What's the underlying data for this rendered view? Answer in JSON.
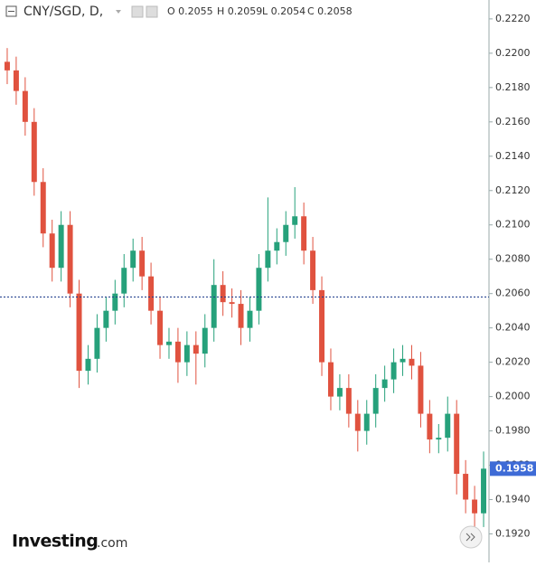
{
  "header": {
    "symbol": "CNY/SGD, D,",
    "open": "O 0.2055",
    "high": "H 0.2059",
    "low": "L 0.2054",
    "close": "C 0.2058"
  },
  "logo": {
    "name": "Investing",
    "suffix": ".com"
  },
  "chart_data": {
    "type": "candlestick",
    "open": [
      0.2195,
      0.219,
      0.2178,
      0.216,
      0.2125,
      0.2095,
      0.2075,
      0.21,
      0.206,
      0.2015,
      0.2022,
      0.204,
      0.205,
      0.206,
      0.2075,
      0.2085,
      0.207,
      0.205,
      0.203,
      0.2032,
      0.202,
      0.203,
      0.2025,
      0.204,
      0.2065,
      0.2055,
      0.2054,
      0.204,
      0.205,
      0.2075,
      0.2085,
      0.209,
      0.21,
      0.2105,
      0.2085,
      0.2062,
      0.202,
      0.2,
      0.2005,
      0.199,
      0.198,
      0.199,
      0.2005,
      0.201,
      0.202,
      0.2022,
      0.2018,
      0.199,
      0.1975,
      0.1976,
      0.199,
      0.1955,
      0.194,
      0.1932
    ],
    "high": [
      0.2203,
      0.2198,
      0.2186,
      0.2168,
      0.2133,
      0.2103,
      0.2108,
      0.2108,
      0.2068,
      0.203,
      0.2048,
      0.2058,
      0.2068,
      0.2083,
      0.2092,
      0.2093,
      0.2078,
      0.2058,
      0.204,
      0.204,
      0.2038,
      0.2038,
      0.2048,
      0.208,
      0.2073,
      0.2063,
      0.2062,
      0.2058,
      0.2083,
      0.2116,
      0.2098,
      0.2108,
      0.2122,
      0.2113,
      0.2093,
      0.207,
      0.2028,
      0.2013,
      0.2013,
      0.1998,
      0.1998,
      0.2013,
      0.2018,
      0.2028,
      0.203,
      0.203,
      0.2026,
      0.1998,
      0.1984,
      0.2,
      0.1998,
      0.1963,
      0.1948,
      0.1968
    ],
    "low": [
      0.2182,
      0.217,
      0.2152,
      0.2117,
      0.2087,
      0.2067,
      0.2067,
      0.2052,
      0.2005,
      0.2007,
      0.2014,
      0.2032,
      0.2042,
      0.2052,
      0.2067,
      0.2062,
      0.2042,
      0.2022,
      0.2022,
      0.2008,
      0.2012,
      0.2007,
      0.2017,
      0.2032,
      0.2047,
      0.2046,
      0.203,
      0.2032,
      0.2042,
      0.2067,
      0.2077,
      0.2082,
      0.2092,
      0.2077,
      0.2054,
      0.2012,
      0.1992,
      0.1992,
      0.1982,
      0.1968,
      0.1972,
      0.1982,
      0.1997,
      0.2002,
      0.2012,
      0.201,
      0.1982,
      0.1967,
      0.1967,
      0.1968,
      0.1943,
      0.1932,
      0.1922,
      0.1924
    ],
    "close": [
      0.219,
      0.2178,
      0.216,
      0.2125,
      0.2095,
      0.2075,
      0.21,
      0.206,
      0.2015,
      0.2022,
      0.204,
      0.205,
      0.206,
      0.2075,
      0.2085,
      0.207,
      0.205,
      0.203,
      0.2032,
      0.202,
      0.203,
      0.2025,
      0.204,
      0.2065,
      0.2055,
      0.2054,
      0.204,
      0.205,
      0.2075,
      0.2085,
      0.209,
      0.21,
      0.2105,
      0.2085,
      0.2062,
      0.202,
      0.2,
      0.2005,
      0.199,
      0.198,
      0.199,
      0.2005,
      0.201,
      0.202,
      0.2022,
      0.2018,
      0.199,
      0.1975,
      0.1976,
      0.199,
      0.1955,
      0.194,
      0.1932,
      0.1958
    ],
    "up_color": "#26a17b",
    "down_color": "#e0523f",
    "ylim": [
      0.1915,
      0.2231
    ],
    "yticks": [
      {
        "value": 0.192,
        "label": "0.1920"
      },
      {
        "value": 0.194,
        "label": "0.1940"
      },
      {
        "value": 0.196,
        "label": "0.1960"
      },
      {
        "value": 0.198,
        "label": "0.1980"
      },
      {
        "value": 0.2,
        "label": "0.2000"
      },
      {
        "value": 0.202,
        "label": "0.2020"
      },
      {
        "value": 0.204,
        "label": "0.2040"
      },
      {
        "value": 0.206,
        "label": "0.2060"
      },
      {
        "value": 0.208,
        "label": "0.2080"
      },
      {
        "value": 0.21,
        "label": "0.2100"
      },
      {
        "value": 0.212,
        "label": "0.2120"
      },
      {
        "value": 0.214,
        "label": "0.2140"
      },
      {
        "value": 0.216,
        "label": "0.2160"
      },
      {
        "value": 0.218,
        "label": "0.2180"
      },
      {
        "value": 0.22,
        "label": "0.2200"
      },
      {
        "value": 0.222,
        "label": "0.2220"
      }
    ],
    "crosshair": 0.2058,
    "last_price": {
      "value": 0.1958,
      "label": "0.1958"
    }
  }
}
